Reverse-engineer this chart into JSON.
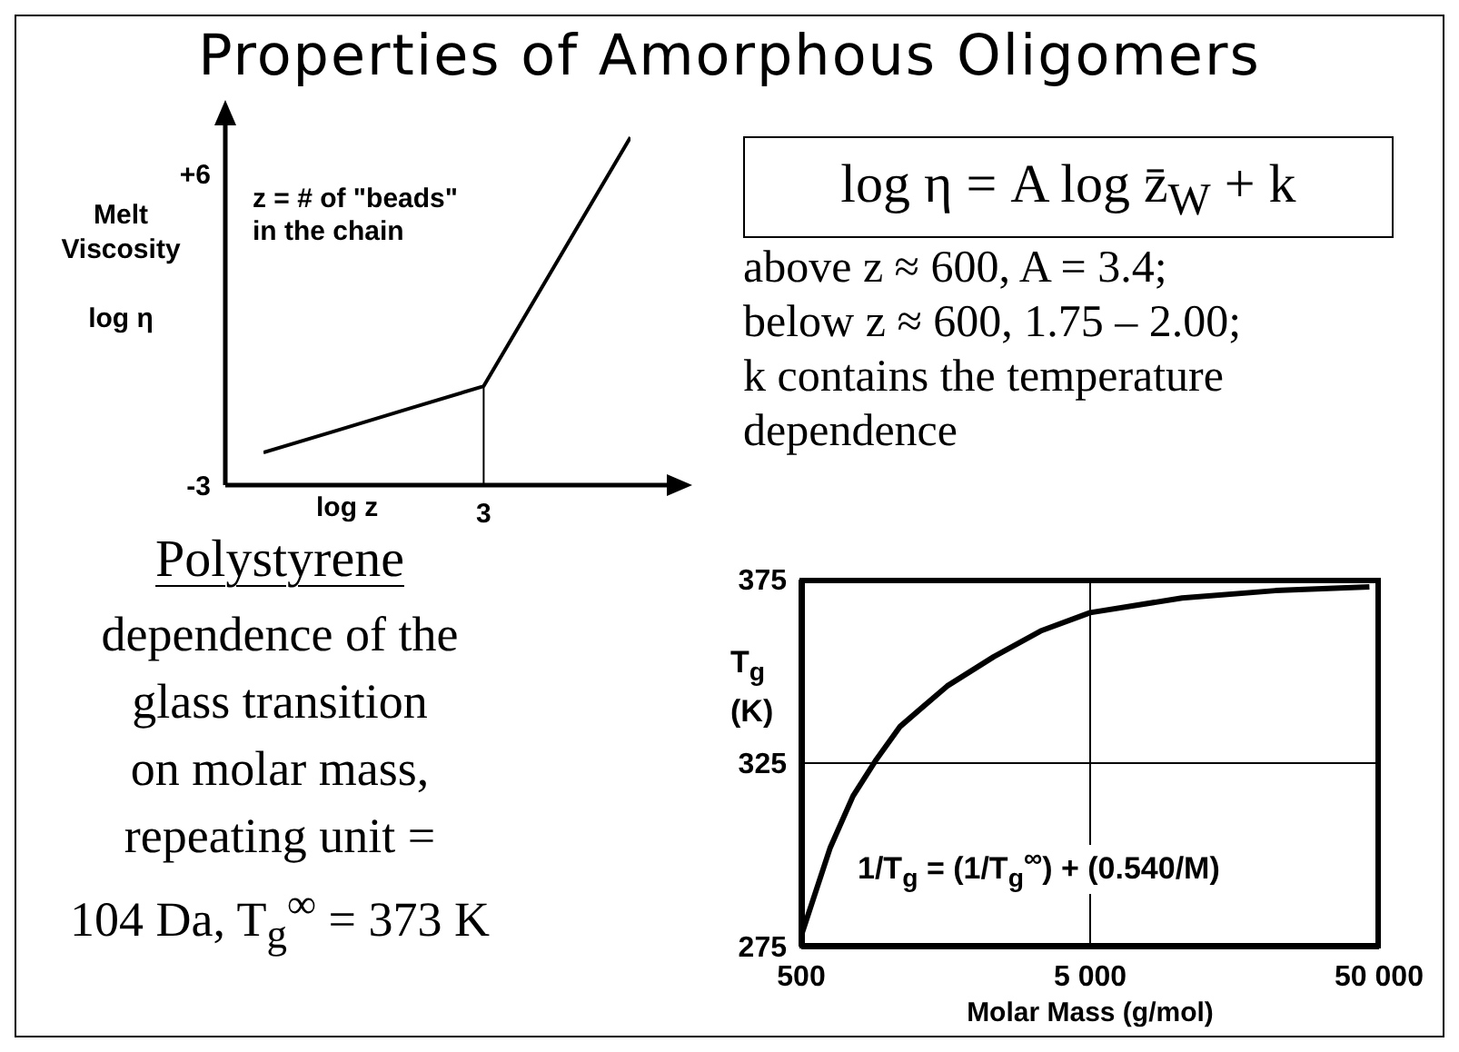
{
  "chart_data": [
    {
      "type": "line",
      "title": "Properties of Amorphous Oligomers",
      "xlabel": "log z",
      "ylabel": "Melt\nViscosity\n\nlog η",
      "categories": [
        null,
        null,
        null,
        "3",
        null,
        null
      ],
      "values": [
        -2.06,
        -1.42,
        -0.78,
        -0.14,
        3.46,
        7.05
      ],
      "color": "#000000",
      "ylim": [
        -3,
        7.5
      ],
      "yticks": [
        {
          "value": -3,
          "label": "-3"
        },
        {
          "value": 6,
          "label": "+6"
        }
      ],
      "ref_lines": [
        {
          "axis": "x",
          "value": "3",
          "color": "#000000"
        }
      ],
      "annotations": [
        "z = # of \"beads\"\nin the chain",
        "log η =  A log z̄$_{W}$ + k",
        "above z ≈ 600,    A = 3.4;\nbelow z ≈ 600, 1.75 – 2.00;\nk contains the temperature\ndependence"
      ]
    },
    {
      "type": "line",
      "xlabel": "Molar Mass (g/mol)",
      "ylabel": "T$_{g}$ (K)",
      "x": [
        500,
        630,
        755,
        910,
        1100,
        1600,
        2320,
        3370,
        5000,
        10400,
        21900,
        46300
      ],
      "values": [
        278,
        302,
        316,
        326,
        335,
        346,
        354,
        361,
        366,
        370,
        372,
        373
      ],
      "color": "#000000",
      "log": "x",
      "xlim": [
        500,
        50000
      ],
      "xticks": [
        500,
        {
          "value": 5000,
          "label": "5 000"
        },
        {
          "value": 50000,
          "label": "50 000"
        }
      ],
      "ylim": [
        275,
        375
      ],
      "yticks": [
        275,
        325,
        375
      ],
      "grid": true,
      "annotations": [
        "1/T$_{g}$ = (1/T$_{g}$$^{∞}$) + (0.540/M)",
        "Polystyrene",
        "dependence of the\nglass transition\non molar mass,\nrepeating unit =\n104 Da, T$_{g}$$^{∞}$ = 373 K"
      ]
    }
  ]
}
